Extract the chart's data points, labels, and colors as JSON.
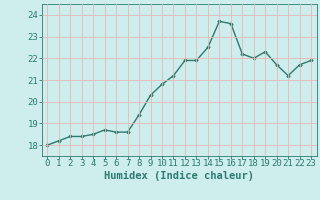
{
  "x": [
    0,
    1,
    2,
    3,
    4,
    5,
    6,
    7,
    8,
    9,
    10,
    11,
    12,
    13,
    14,
    15,
    16,
    17,
    18,
    19,
    20,
    21,
    22,
    23
  ],
  "y": [
    18.0,
    18.2,
    18.4,
    18.4,
    18.5,
    18.7,
    18.6,
    18.6,
    19.4,
    20.3,
    20.8,
    21.2,
    21.9,
    21.9,
    22.5,
    23.7,
    23.6,
    22.2,
    22.0,
    22.3,
    21.7,
    21.2,
    21.7,
    21.9
  ],
  "line_color": "#2d7a6e",
  "marker": "D",
  "marker_size": 1.8,
  "bg_color": "#cdeeed",
  "grid_color": "#b0ddd7",
  "xlabel": "Humidex (Indice chaleur)",
  "ylim": [
    17.5,
    24.5
  ],
  "xlim": [
    -0.5,
    23.5
  ],
  "yticks": [
    18,
    19,
    20,
    21,
    22,
    23,
    24
  ],
  "xticks": [
    0,
    1,
    2,
    3,
    4,
    5,
    6,
    7,
    8,
    9,
    10,
    11,
    12,
    13,
    14,
    15,
    16,
    17,
    18,
    19,
    20,
    21,
    22,
    23
  ],
  "xlabel_fontsize": 7.5,
  "tick_fontsize": 6.5,
  "line_width": 1.0
}
